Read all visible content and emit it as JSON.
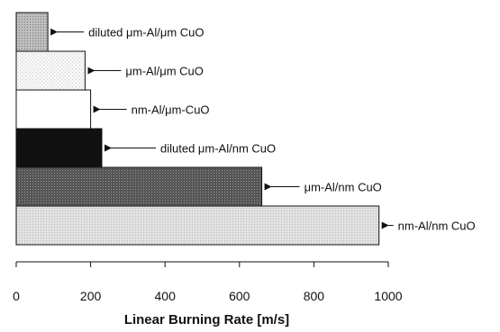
{
  "chart_data": {
    "type": "bar",
    "orientation": "horizontal",
    "categories": [
      "diluted μm-Al/μm CuO",
      "μm-Al/μm CuO",
      "nm-Al/μm-CuO",
      "diluted μm-Al/nm CuO",
      "μm-Al/nm CuO",
      "nm-Al/nm CuO"
    ],
    "values": [
      85,
      185,
      200,
      230,
      660,
      975
    ],
    "bar_styles": [
      "grid-gray",
      "light-speckle",
      "white",
      "black",
      "dark-dotted",
      "light-gray-dotted"
    ],
    "title": "",
    "xlabel": "Linear Burning Rate [m/s]",
    "ylabel": "",
    "xlim": [
      0,
      1000
    ],
    "xticks": [
      0,
      200,
      400,
      600,
      800,
      1000
    ],
    "xtick_labels": [
      "0",
      "200",
      "400",
      "600",
      "800",
      "1000"
    ],
    "grid": false,
    "legend": "none",
    "labels_style": "arrow-annotations"
  }
}
